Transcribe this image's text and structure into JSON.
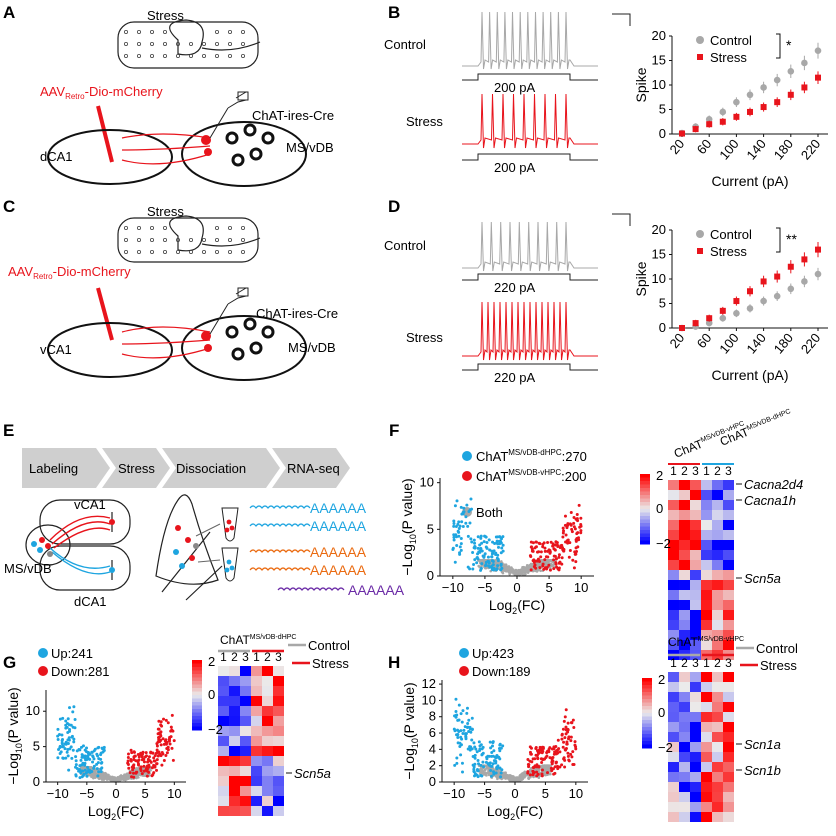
{
  "panels": {
    "A": "A",
    "B": "B",
    "C": "C",
    "D": "D",
    "E": "E",
    "F": "F",
    "G": "G",
    "H": "H"
  },
  "stress_label": "Stress",
  "control_label": "Control",
  "aav_prefix": "AAV",
  "aav_sub": "Retro",
  "aav_suffix": "-Dio-mCherry",
  "chat_cre": "ChAT-ires-Cre",
  "msvdb": "MS/vDB",
  "dca1": "dCA1",
  "vca1": "vCA1",
  "pA200": "200 pA",
  "pA220": "220 pA",
  "colors": {
    "gray": "#a8a8a8",
    "red": "#e8141c",
    "blue": "#1ea5e0",
    "purple": "#6a2aa6",
    "orange": "#ea6a10"
  },
  "chart_data": [
    {
      "type": "scatter",
      "panel": "B",
      "ylabel": "Spike",
      "xlabel": "Current (pA)",
      "ylim": [
        0,
        20
      ],
      "yticks": [
        0,
        5,
        10,
        15,
        20
      ],
      "x": [
        20,
        40,
        60,
        80,
        100,
        120,
        140,
        160,
        180,
        200,
        220
      ],
      "xticks": [
        "20",
        "60",
        "100",
        "140",
        "180",
        "220"
      ],
      "xtick_vals": [
        20,
        60,
        100,
        140,
        180,
        220
      ],
      "significance": "*",
      "series": [
        {
          "name": "Control",
          "values": [
            0.2,
            1.5,
            3,
            4.5,
            6.5,
            8,
            9.5,
            11,
            12.8,
            14.5,
            17
          ]
        },
        {
          "name": "Stress",
          "values": [
            0.1,
            1,
            2,
            2.5,
            3.5,
            4.5,
            5.5,
            6.5,
            8,
            9.5,
            11.5
          ]
        }
      ]
    },
    {
      "type": "scatter",
      "panel": "D",
      "ylabel": "Spike",
      "xlabel": "Current (pA)",
      "ylim": [
        0,
        20
      ],
      "yticks": [
        0,
        5,
        10,
        15,
        20
      ],
      "x": [
        20,
        40,
        60,
        80,
        100,
        120,
        140,
        160,
        180,
        200,
        220
      ],
      "xticks": [
        "20",
        "60",
        "100",
        "140",
        "180",
        "220"
      ],
      "xtick_vals": [
        20,
        60,
        100,
        140,
        180,
        220
      ],
      "significance": "**",
      "series": [
        {
          "name": "Control",
          "values": [
            0,
            0.3,
            1,
            2,
            3,
            4,
            5.5,
            6.5,
            8,
            9.5,
            11
          ]
        },
        {
          "name": "Stress",
          "values": [
            0,
            1,
            2,
            3.5,
            5.5,
            7.5,
            9.5,
            10.5,
            12.5,
            14,
            16
          ]
        }
      ]
    }
  ],
  "workflow": {
    "steps": [
      "Labeling",
      "Stress",
      "Dissociation",
      "RNA-seq"
    ],
    "polyA": "AAAAAA"
  },
  "F": {
    "blue_main": "ChAT",
    "blue_sup": "MS/vDB-dHPC",
    "blue_count": ":270",
    "red_main": "ChAT",
    "red_sup": "MS/vDB-vHPC",
    "red_count": ":200",
    "gray_label": "Both",
    "ylabel_main": "−Log",
    "ylabel_sub": "10",
    "ylabel_rest": "(P value)",
    "xlabel_main": "Log",
    "xlabel_sub": "2",
    "xlabel_rest": "(FC)",
    "yticks": [
      "0",
      "5",
      "10"
    ],
    "xticks": [
      "−10",
      "−5",
      "0",
      "5",
      "10"
    ],
    "heat_col_a": "ChAT",
    "heat_col_a_sup": "MS/vDB-vHPC",
    "heat_col_b": "ChAT",
    "heat_col_b_sup": "MS/vDB-dHPC",
    "cols": [
      "1",
      "2",
      "3",
      "1",
      "2",
      "3"
    ],
    "scale": [
      "2",
      "0",
      "−2"
    ],
    "genes": [
      "Cacna2d4",
      "Cacna1h",
      "Scn5a"
    ]
  },
  "G": {
    "up": "Up:241",
    "down": "Down:281",
    "ylabel_main": "−Log",
    "ylabel_sub": "10",
    "ylabel_rest": "(P value)",
    "xlabel_main": "Log",
    "xlabel_sub": "2",
    "xlabel_rest": "(FC)",
    "yticks": [
      "0",
      "5",
      "10"
    ],
    "xticks": [
      "−10",
      "−5",
      "0",
      "5",
      "10"
    ],
    "heat_title": "ChAT",
    "heat_title_sup": "MS/vDB-dHPC",
    "cols": [
      "1",
      "2",
      "3",
      "1",
      "2",
      "3"
    ],
    "scale": [
      "2",
      "0",
      "−2"
    ],
    "genes": [
      "Scn5a"
    ]
  },
  "H": {
    "up": "Up:423",
    "down": "Down:189",
    "ylabel_main": "−Log",
    "ylabel_sub": "10",
    "ylabel_rest": "(P value)",
    "xlabel_main": "Log",
    "xlabel_sub": "2",
    "xlabel_rest": "(FC)",
    "yticks": [
      "0",
      "2",
      "4",
      "6",
      "8",
      "10",
      "12"
    ],
    "xticks": [
      "−10",
      "−5",
      "0",
      "5",
      "10"
    ],
    "heat_title": "ChAT",
    "heat_title_sup": "MS/vDB-vHPC",
    "cols": [
      "1",
      "2",
      "3",
      "1",
      "2",
      "3"
    ],
    "scale": [
      "2",
      "0",
      "−2"
    ],
    "genes": [
      "Scn1a",
      "Scn1b"
    ]
  }
}
